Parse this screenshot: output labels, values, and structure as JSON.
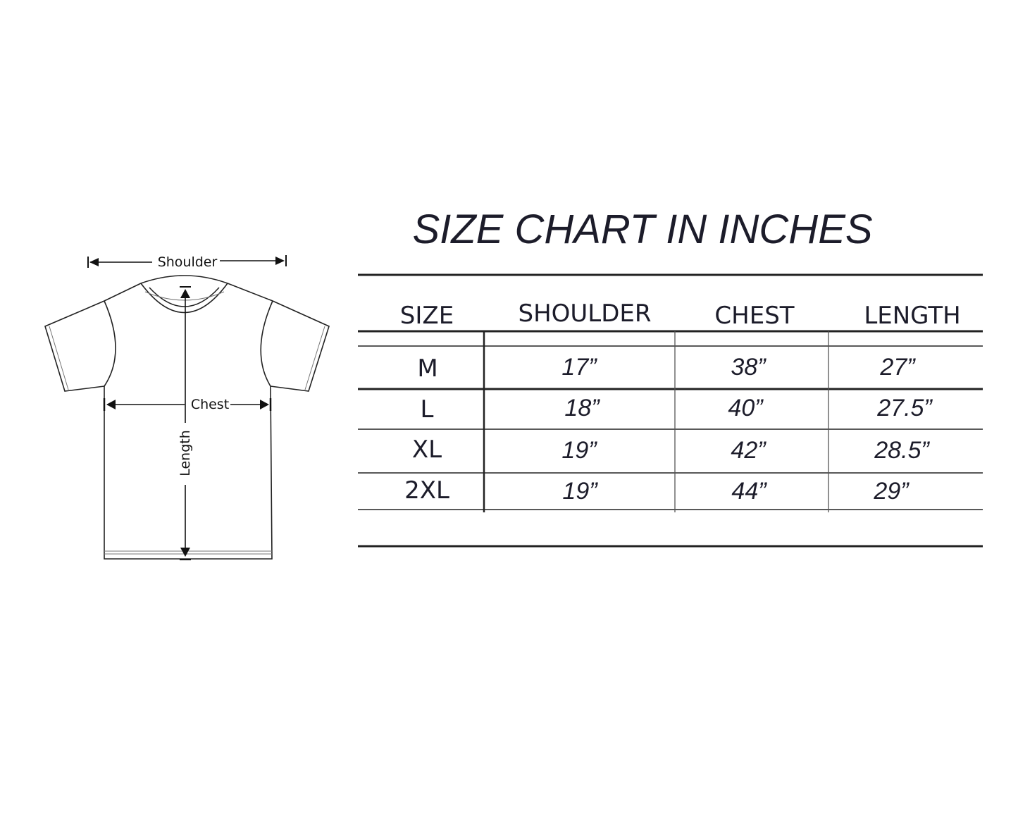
{
  "title": "SIZE CHART IN INCHES",
  "diagram": {
    "labels": {
      "shoulder": "Shoulder",
      "chest": "Chest",
      "length": "Length"
    }
  },
  "table": {
    "headers": [
      "SIZE",
      "SHOULDER",
      "CHEST",
      "LENGTH"
    ],
    "rows": [
      {
        "size": "M",
        "shoulder": "17”",
        "chest": "38”",
        "length": "27”"
      },
      {
        "size": "L",
        "shoulder": "18”",
        "chest": "40”",
        "length": "27.5”"
      },
      {
        "size": "XL",
        "shoulder": "19”",
        "chest": "42”",
        "length": "28.5”"
      },
      {
        "size": "2XL",
        "shoulder": "19”",
        "chest": "44”",
        "length": "29”"
      }
    ]
  }
}
